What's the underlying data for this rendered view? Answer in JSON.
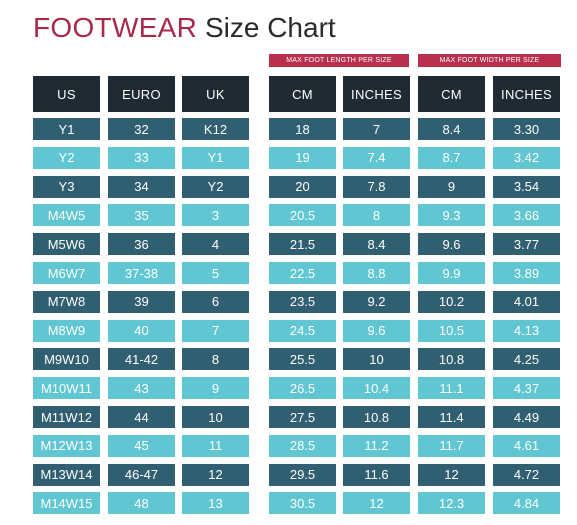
{
  "title": {
    "part1": "FOOTWEAR",
    "part2": "Size Chart"
  },
  "groups": {
    "length": "MAX FOOT LENGTH PER SIZE",
    "width": "MAX FOOT WIDTH PER SIZE"
  },
  "columns": [
    "US",
    "EURO",
    "UK",
    "CM",
    "INCHES",
    "CM",
    "INCHES"
  ],
  "rows": [
    [
      "Y1",
      "32",
      "K12",
      "18",
      "7",
      "8.4",
      "3.30"
    ],
    [
      "Y2",
      "33",
      "Y1",
      "19",
      "7.4",
      "8.7",
      "3.42"
    ],
    [
      "Y3",
      "34",
      "Y2",
      "20",
      "7.8",
      "9",
      "3.54"
    ],
    [
      "M4W5",
      "35",
      "3",
      "20.5",
      "8",
      "9.3",
      "3.66"
    ],
    [
      "M5W6",
      "36",
      "4",
      "21.5",
      "8.4",
      "9.6",
      "3.77"
    ],
    [
      "M6W7",
      "37-38",
      "5",
      "22.5",
      "8.8",
      "9.9",
      "3.89"
    ],
    [
      "M7W8",
      "39",
      "6",
      "23.5",
      "9.2",
      "10.2",
      "4.01"
    ],
    [
      "M8W9",
      "40",
      "7",
      "24.5",
      "9.6",
      "10.5",
      "4.13"
    ],
    [
      "M9W10",
      "41-42",
      "8",
      "25.5",
      "10",
      "10.8",
      "4.25"
    ],
    [
      "M10W11",
      "43",
      "9",
      "26.5",
      "10.4",
      "11.1",
      "4.37"
    ],
    [
      "M11W12",
      "44",
      "10",
      "27.5",
      "10.8",
      "11.4",
      "4.49"
    ],
    [
      "M12W13",
      "45",
      "11",
      "28.5",
      "11.2",
      "11.7",
      "4.61"
    ],
    [
      "M13W14",
      "46-47",
      "12",
      "29.5",
      "11.6",
      "12",
      "4.72"
    ],
    [
      "M14W15",
      "48",
      "13",
      "30.5",
      "12",
      "12.3",
      "4.84"
    ]
  ],
  "colors": {
    "header": "#1f2a32",
    "dark_row": "#2f5f70",
    "light_row": "#5fc6d2",
    "accent": "#b8304d"
  }
}
